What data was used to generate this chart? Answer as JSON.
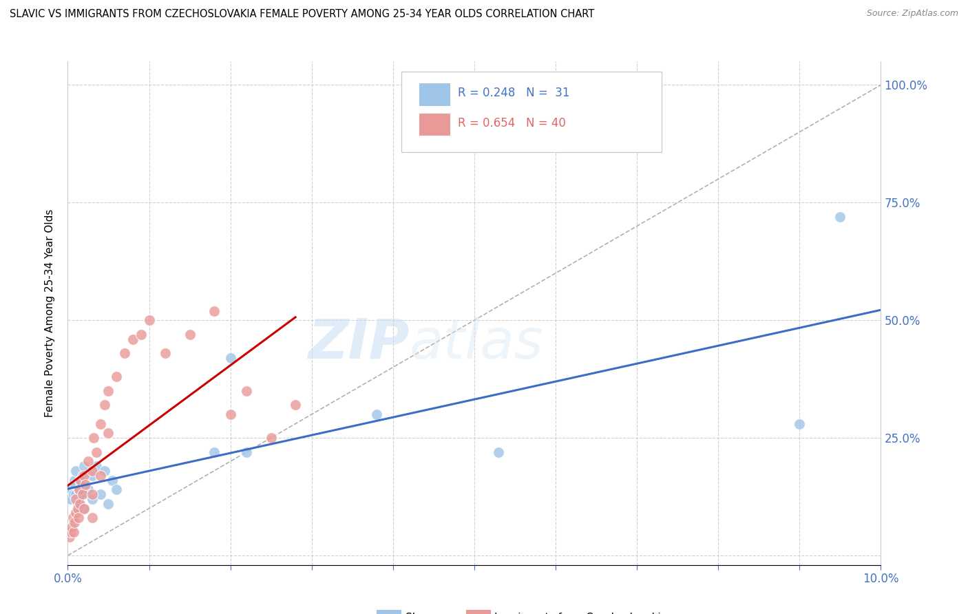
{
  "title": "SLAVIC VS IMMIGRANTS FROM CZECHOSLOVAKIA FEMALE POVERTY AMONG 25-34 YEAR OLDS CORRELATION CHART",
  "source": "Source: ZipAtlas.com",
  "ylabel": "Female Poverty Among 25-34 Year Olds",
  "xlim": [
    0.0,
    0.1
  ],
  "ylim": [
    -0.02,
    1.05
  ],
  "color_slavs": "#9fc5e8",
  "color_czecho": "#ea9999",
  "color_slavs_line": "#3c6dc5",
  "color_czecho_line": "#cc0000",
  "color_diag": "#b0b0b0",
  "background_color": "#ffffff",
  "watermark_zip": "ZIP",
  "watermark_atlas": "atlas",
  "slavs_x": [
    0.0003,
    0.0005,
    0.0007,
    0.0008,
    0.0009,
    0.001,
    0.001,
    0.0012,
    0.0013,
    0.0015,
    0.0016,
    0.0018,
    0.002,
    0.002,
    0.002,
    0.0025,
    0.003,
    0.003,
    0.0035,
    0.004,
    0.0045,
    0.005,
    0.0055,
    0.006,
    0.018,
    0.02,
    0.022,
    0.038,
    0.053,
    0.09,
    0.095
  ],
  "slavs_y": [
    0.12,
    0.14,
    0.13,
    0.16,
    0.15,
    0.13,
    0.18,
    0.11,
    0.14,
    0.16,
    0.13,
    0.17,
    0.1,
    0.15,
    0.19,
    0.14,
    0.12,
    0.17,
    0.19,
    0.13,
    0.18,
    0.11,
    0.16,
    0.14,
    0.22,
    0.42,
    0.22,
    0.3,
    0.22,
    0.28,
    0.72
  ],
  "czecho_x": [
    0.0002,
    0.0004,
    0.0005,
    0.0006,
    0.0007,
    0.0008,
    0.001,
    0.001,
    0.0012,
    0.0013,
    0.0014,
    0.0015,
    0.0016,
    0.0018,
    0.002,
    0.002,
    0.0022,
    0.0025,
    0.003,
    0.003,
    0.003,
    0.0032,
    0.0035,
    0.004,
    0.004,
    0.0045,
    0.005,
    0.005,
    0.006,
    0.007,
    0.008,
    0.009,
    0.01,
    0.012,
    0.015,
    0.018,
    0.02,
    0.022,
    0.025,
    0.028
  ],
  "czecho_y": [
    0.04,
    0.05,
    0.06,
    0.08,
    0.05,
    0.07,
    0.09,
    0.12,
    0.1,
    0.08,
    0.14,
    0.11,
    0.16,
    0.13,
    0.1,
    0.17,
    0.15,
    0.2,
    0.08,
    0.13,
    0.18,
    0.25,
    0.22,
    0.17,
    0.28,
    0.32,
    0.26,
    0.35,
    0.38,
    0.43,
    0.46,
    0.47,
    0.5,
    0.43,
    0.47,
    0.52,
    0.3,
    0.35,
    0.25,
    0.32
  ]
}
